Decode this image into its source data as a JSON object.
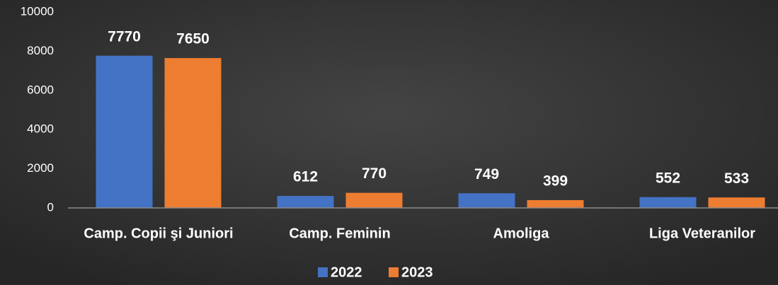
{
  "chart_data": {
    "type": "bar",
    "categories": [
      "Camp. Copii şi Juniori",
      "Camp. Feminin",
      "Amoliga",
      "Liga Veteranilor"
    ],
    "series": [
      {
        "name": "2022",
        "color": "#4472c4",
        "values": [
          7770,
          612,
          749,
          552
        ]
      },
      {
        "name": "2023",
        "color": "#ed7d31",
        "values": [
          7650,
          770,
          399,
          533
        ]
      }
    ],
    "ylim": [
      0,
      10000
    ],
    "yticks": [
      0,
      2000,
      4000,
      6000,
      8000,
      10000
    ],
    "grid": false,
    "legend": "bottom"
  }
}
